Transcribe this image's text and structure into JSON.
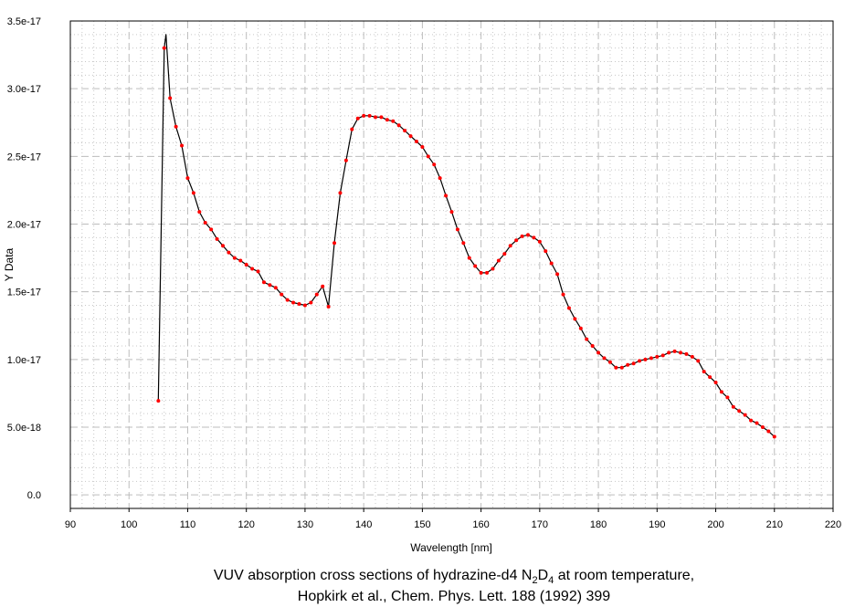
{
  "chart_data": {
    "type": "line",
    "title_line1_pre": "VUV absorption cross sections of hydrazine-d4 N",
    "title_sub1": "2",
    "title_mid": "D",
    "title_sub2": "4",
    "title_line1_post": " at room temperature,",
    "title_line2": "Hopkirk et al., Chem. Phys. Lett. 188 (1992) 399",
    "xlabel": "Wavelength [nm]",
    "ylabel": "Y Data",
    "xlim": [
      90,
      220
    ],
    "ylim": [
      -1e-18,
      3.5e-17
    ],
    "xticks": [
      90,
      100,
      110,
      120,
      130,
      140,
      150,
      160,
      170,
      180,
      190,
      200,
      210,
      220
    ],
    "xtick_labels": [
      "90",
      "100",
      "110",
      "120",
      "130",
      "140",
      "150",
      "160",
      "170",
      "180",
      "190",
      "200",
      "210",
      "220"
    ],
    "yticks": [
      0,
      5e-18,
      1e-17,
      1.5e-17,
      2e-17,
      2.5e-17,
      3e-17,
      3.5e-17
    ],
    "ytick_labels": [
      "0.0",
      "5.0e-18",
      "1.0e-17",
      "1.5e-17",
      "2.0e-17",
      "2.5e-17",
      "3.0e-17",
      "3.5e-17"
    ],
    "grid": true,
    "line_color": "#000000",
    "marker_color": "#ff0000",
    "y_unit_scale": 1e-18,
    "series": [
      {
        "name": "N2D4",
        "x": [
          105,
          106,
          106.3,
          107,
          108,
          109,
          110,
          111,
          112,
          113,
          114,
          115,
          116,
          117,
          118,
          119,
          120,
          121,
          122,
          123,
          124,
          125,
          126,
          127,
          128,
          129,
          130,
          131,
          132,
          133,
          134,
          135,
          136,
          137,
          138,
          139,
          140,
          141,
          142,
          143,
          144,
          145,
          146,
          147,
          148,
          149,
          150,
          151,
          152,
          153,
          154,
          155,
          156,
          157,
          158,
          159,
          160,
          161,
          162,
          163,
          164,
          165,
          166,
          167,
          168,
          169,
          170,
          171,
          172,
          173,
          174,
          175,
          176,
          177,
          178,
          179,
          180,
          181,
          182,
          183,
          184,
          185,
          186,
          187,
          188,
          189,
          190,
          191,
          192,
          193,
          194,
          195,
          196,
          197,
          198,
          199,
          200,
          201,
          202,
          203,
          204,
          205,
          206,
          207,
          208,
          209,
          210
        ],
        "y": [
          6.95,
          33.0,
          34.0,
          29.3,
          27.2,
          25.8,
          23.4,
          22.3,
          20.9,
          20.1,
          19.6,
          18.9,
          18.4,
          17.9,
          17.5,
          17.3,
          17.0,
          16.7,
          16.5,
          15.7,
          15.5,
          15.3,
          14.8,
          14.4,
          14.2,
          14.1,
          14.0,
          14.2,
          14.8,
          15.4,
          13.9,
          18.6,
          22.3,
          24.7,
          27.0,
          27.8,
          28.0,
          28.0,
          27.9,
          27.9,
          27.7,
          27.6,
          27.3,
          26.9,
          26.5,
          26.1,
          25.7,
          25.0,
          24.4,
          23.4,
          22.1,
          20.9,
          19.6,
          18.6,
          17.5,
          16.9,
          16.4,
          16.4,
          16.7,
          17.3,
          17.8,
          18.4,
          18.8,
          19.1,
          19.2,
          19.0,
          18.7,
          18.0,
          17.1,
          16.3,
          14.8,
          13.8,
          13.0,
          12.3,
          11.5,
          11.0,
          10.5,
          10.1,
          9.8,
          9.4,
          9.4,
          9.6,
          9.7,
          9.9,
          10.0,
          10.1,
          10.2,
          10.3,
          10.5,
          10.6,
          10.5,
          10.4,
          10.2,
          9.9,
          9.1,
          8.7,
          8.3,
          7.6,
          7.2,
          6.5,
          6.2,
          5.9,
          5.5,
          5.3,
          5.0,
          4.7,
          4.3
        ],
        "marker_skip_x": [
          106.3
        ]
      }
    ]
  }
}
